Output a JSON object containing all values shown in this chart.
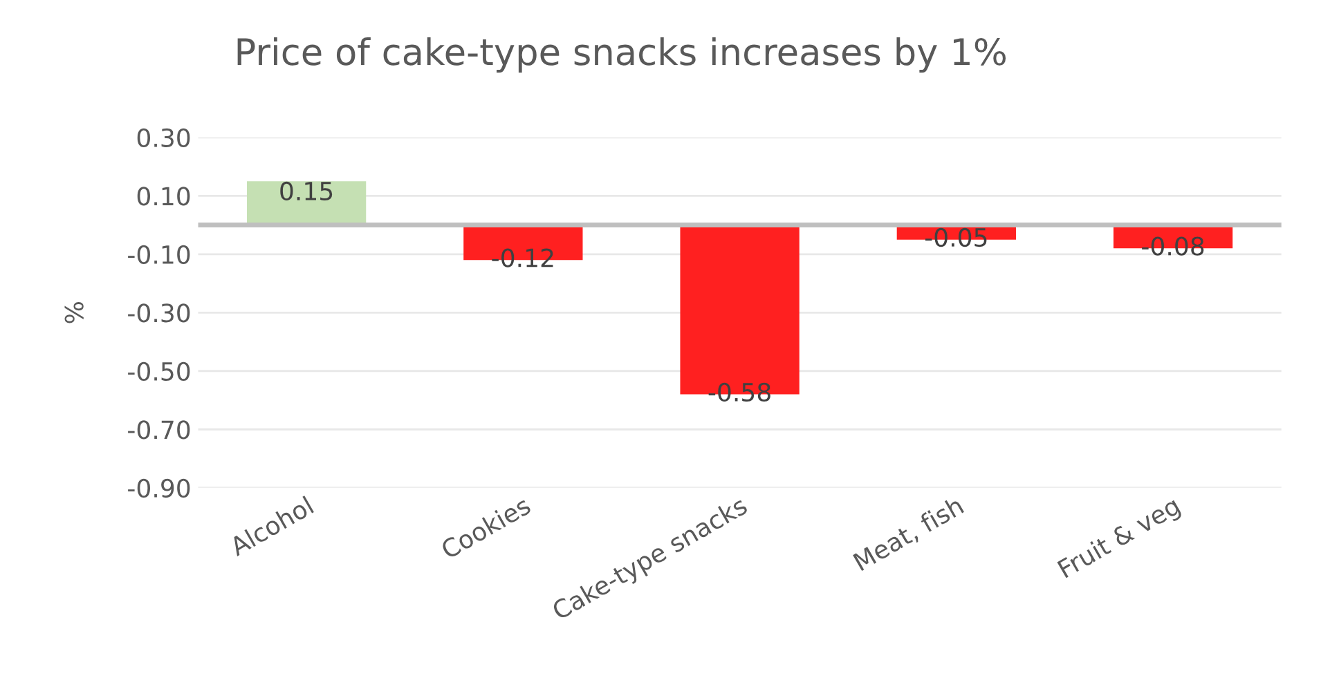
{
  "chart_data": {
    "type": "bar",
    "title": "Price of cake-type snacks increases by 1%",
    "ylabel": "%",
    "categories": [
      "Alcohol",
      "Cookies",
      "Cake-type snacks",
      "Meat, fish",
      "Fruit & veg"
    ],
    "values": [
      0.15,
      -0.12,
      -0.58,
      -0.05,
      -0.08
    ],
    "colors": [
      "#c5e0b3",
      "#ff2020",
      "#ff2020",
      "#ff2020",
      "#ff2020"
    ],
    "ylim": [
      -0.9,
      0.3
    ],
    "yticks": [
      {
        "value": 0.3,
        "label": "0.30"
      },
      {
        "value": 0.1,
        "label": "0.10"
      },
      {
        "value": -0.1,
        "label": "-0.10"
      },
      {
        "value": -0.3,
        "label": "-0.30"
      },
      {
        "value": -0.5,
        "label": "-0.50"
      },
      {
        "value": -0.7,
        "label": "-0.70"
      },
      {
        "value": -0.9,
        "label": "-0.90"
      }
    ],
    "ref_lines": [
      {
        "axis": "y",
        "value": 0,
        "color": "#bfbfbf"
      }
    ],
    "grid": "y",
    "data_labels": true,
    "legend": false
  }
}
